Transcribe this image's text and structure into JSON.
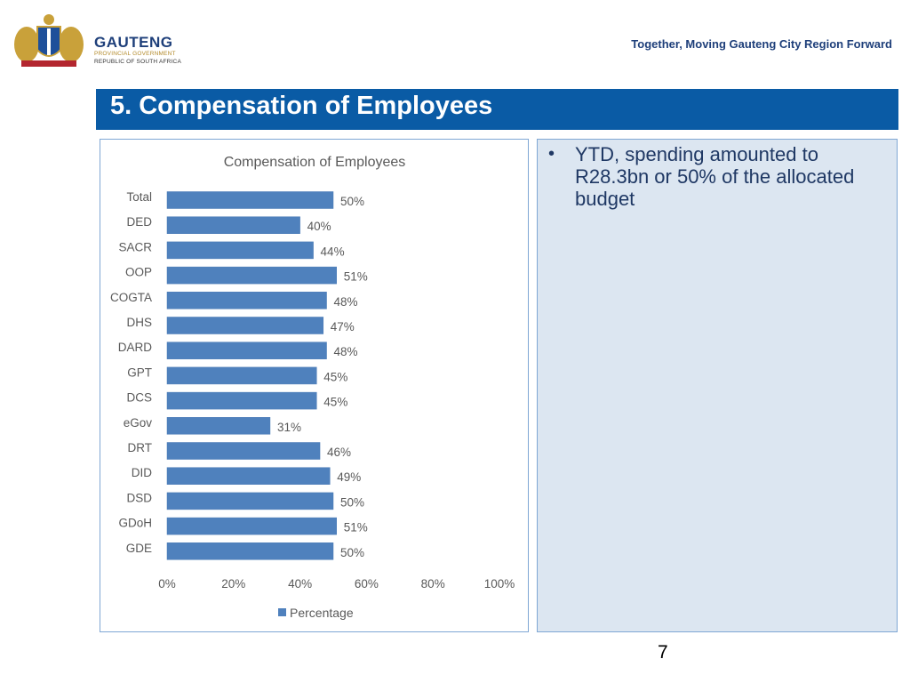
{
  "header": {
    "org_name": "GAUTENG",
    "org_sub1": "PROVINCIAL GOVERNMENT",
    "org_sub2": "REPUBLIC OF SOUTH AFRICA",
    "tagline": "Together, Moving Gauteng City Region Forward"
  },
  "slide": {
    "title": "5. Compensation of Employees",
    "bullet": "YTD, spending amounted to R28.3bn or 50% of the allocated budget",
    "page_number": "7"
  },
  "colors": {
    "bar": "#4f81bd",
    "title_bar": "#0a5ba5",
    "panel": "#dce6f1"
  },
  "chart_data": {
    "type": "bar",
    "orientation": "horizontal",
    "title": "Compensation of Employees",
    "categories": [
      "Total",
      "DED",
      "SACR",
      "OOP",
      "COGTA",
      "DHS",
      "DARD",
      "GPT",
      "DCS",
      "eGov",
      "DRT",
      "DID",
      "DSD",
      "GDoH",
      "GDE"
    ],
    "series": [
      {
        "name": "Percentage",
        "values": [
          50,
          40,
          44,
          51,
          48,
          47,
          48,
          45,
          45,
          31,
          46,
          49,
          50,
          51,
          50
        ]
      }
    ],
    "data_labels": [
      "50%",
      "40%",
      "44%",
      "51%",
      "48%",
      "47%",
      "48%",
      "45%",
      "45%",
      "31%",
      "46%",
      "49%",
      "50%",
      "51%",
      "50%"
    ],
    "xlim": [
      0,
      100
    ],
    "x_ticks": [
      "0%",
      "20%",
      "40%",
      "60%",
      "80%",
      "100%"
    ],
    "grid": false,
    "legend_position": "bottom"
  }
}
